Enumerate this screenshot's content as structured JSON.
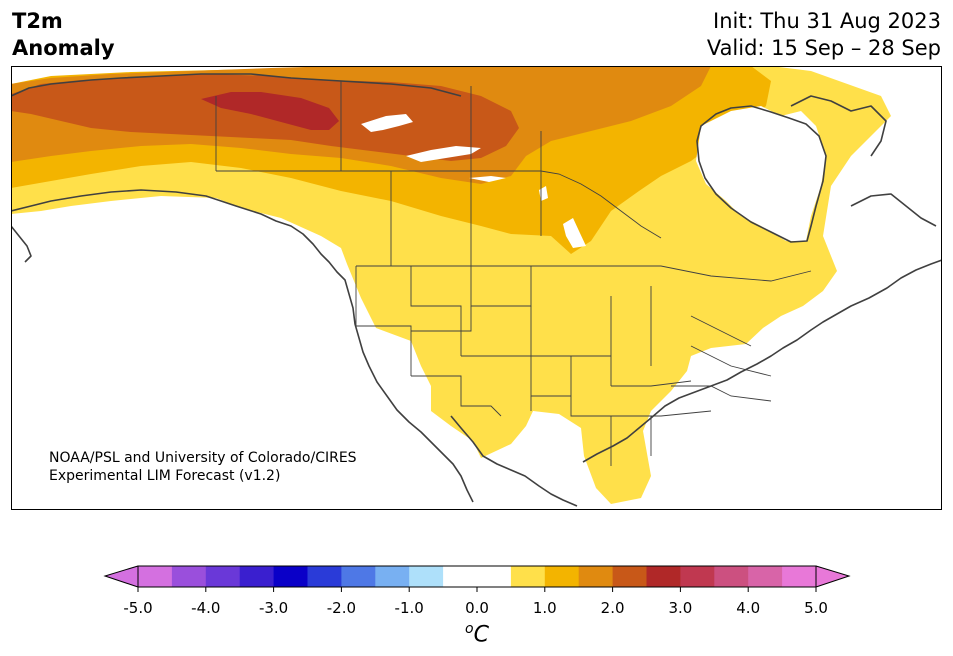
{
  "header": {
    "title_line1": "T2m",
    "title_line2": "Anomaly",
    "init": "Init: Thu 31 Aug 2023",
    "valid": "Valid: 15 Sep – 28 Sep"
  },
  "credit": {
    "line1": "NOAA/PSL and University of Colorado/CIRES",
    "line2": "Experimental LIM Forecast (v1.2)"
  },
  "colorbar": {
    "unit_sup": "o",
    "unit": "C",
    "ticks": [
      "-5.0",
      "-4.0",
      "-3.0",
      "-2.0",
      "-1.0",
      "0.0",
      "1.0",
      "2.0",
      "3.0",
      "4.0",
      "5.0"
    ],
    "colors": [
      "#d470e0",
      "#9a4fdc",
      "#6a38d8",
      "#3a1fcf",
      "#0a00c8",
      "#2a3bd8",
      "#4e78e6",
      "#78b0f2",
      "#aee0fa",
      "#ffffff",
      "#ffffff",
      "#ffe04a",
      "#f3b400",
      "#e08a10",
      "#c85818",
      "#b02828",
      "#c03850",
      "#cc5080",
      "#d864a8",
      "#e878d8"
    ],
    "under_color": "#d470e0",
    "over_color": "#e878d8"
  },
  "map": {
    "region": "North America",
    "variable": "2m temperature anomaly",
    "anomaly_fills": {
      "warm_1_0": "#ffe04a",
      "warm_1_5": "#f3b400",
      "warm_2_0": "#e08a10",
      "warm_2_5": "#c85818",
      "warm_3_0": "#b02828"
    }
  }
}
